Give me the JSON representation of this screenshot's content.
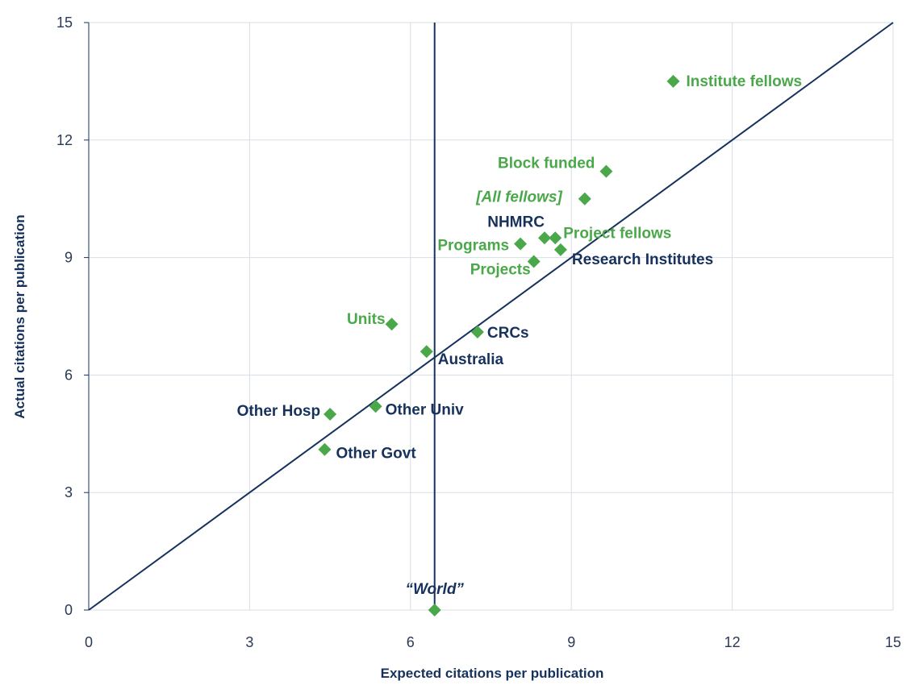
{
  "chart_data": {
    "type": "scatter",
    "xlabel": "Expected citations per publication",
    "ylabel": "Actual citations per publication",
    "xlim": [
      0,
      15
    ],
    "ylim": [
      0,
      15
    ],
    "xticks": [
      "0",
      "3",
      "6",
      "9",
      "12",
      "15"
    ],
    "yticks": [
      "0",
      "3",
      "6",
      "9",
      "12",
      "15"
    ],
    "grid": true,
    "reference_lines": [
      {
        "kind": "diagonal",
        "from": [
          0,
          0
        ],
        "to": [
          15,
          15
        ]
      },
      {
        "kind": "vertical",
        "x": 6.45
      }
    ],
    "colors": {
      "marker": "#4aa84a",
      "green_label": "#4aa84a",
      "navy_label": "#16325c",
      "line": "#16325c",
      "grid": "#d8dde6"
    },
    "points": [
      {
        "label": "Institute fellows",
        "x": 10.9,
        "y": 13.5,
        "label_color": "green",
        "italic": false
      },
      {
        "label": "Block funded",
        "x": 9.65,
        "y": 11.2,
        "label_color": "green",
        "italic": false
      },
      {
        "label": "[All fellows]",
        "x": 9.25,
        "y": 10.5,
        "label_color": "green",
        "italic": true
      },
      {
        "label": "NHMRC",
        "x": 8.5,
        "y": 9.5,
        "label_color": "navy",
        "italic": false
      },
      {
        "label": "Project fellows",
        "x": 8.7,
        "y": 9.5,
        "label_color": "green",
        "italic": false
      },
      {
        "label": "Programs",
        "x": 8.05,
        "y": 9.35,
        "label_color": "green",
        "italic": false
      },
      {
        "label": "Research Institutes",
        "x": 8.8,
        "y": 9.2,
        "label_color": "navy",
        "italic": false
      },
      {
        "label": "Projects",
        "x": 8.3,
        "y": 8.9,
        "label_color": "green",
        "italic": false
      },
      {
        "label": "Units",
        "x": 5.65,
        "y": 7.3,
        "label_color": "green",
        "italic": false
      },
      {
        "label": "CRCs",
        "x": 7.25,
        "y": 7.1,
        "label_color": "navy",
        "italic": false
      },
      {
        "label": "Australia",
        "x": 6.3,
        "y": 6.6,
        "label_color": "navy",
        "italic": false
      },
      {
        "label": "Other Univ",
        "x": 5.35,
        "y": 5.2,
        "label_color": "navy",
        "italic": false
      },
      {
        "label": "Other Hosp",
        "x": 4.5,
        "y": 5.0,
        "label_color": "navy",
        "italic": false
      },
      {
        "label": "Other Govt",
        "x": 4.4,
        "y": 4.1,
        "label_color": "navy",
        "italic": false
      },
      {
        "label": "“World”",
        "x": 6.45,
        "y": 0.0,
        "label_color": "navy",
        "italic": true
      }
    ]
  }
}
